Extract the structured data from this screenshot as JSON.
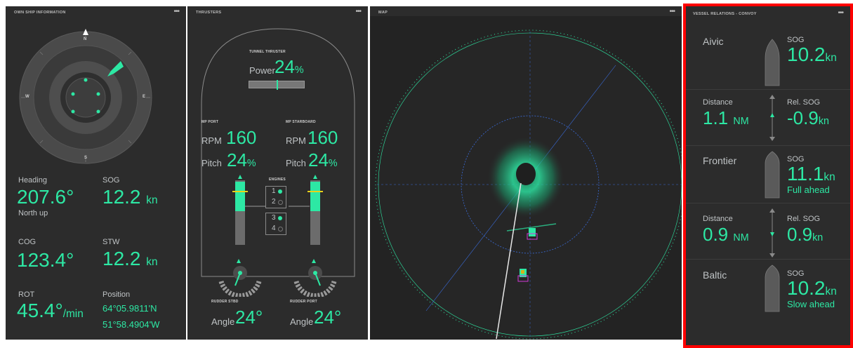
{
  "own_ship": {
    "title": "OWN SHIP INFORMATION",
    "menu": "•••",
    "compass": {
      "n": "N",
      "s": "S",
      "e": "E",
      "w": "W"
    },
    "heading": {
      "label": "Heading",
      "value": "207.6°",
      "sub": "North up"
    },
    "sog": {
      "label": "SOG",
      "value": "12.2",
      "unit": "kn"
    },
    "cog": {
      "label": "COG",
      "value": "123.4°"
    },
    "stw": {
      "label": "STW",
      "value": "12.2",
      "unit": "kn"
    },
    "rot": {
      "label": "ROT",
      "value": "45.4°",
      "unit": "/min"
    },
    "position": {
      "label": "Position",
      "lat": "64°05.9811'N",
      "lon": "51°58.4904'W"
    }
  },
  "thrusters": {
    "title": "THRUSTERS",
    "menu": "•••",
    "tunnel": {
      "title": "TUNNEL THRUSTER",
      "label": "Power",
      "value": "24",
      "unit": "%"
    },
    "mp_port": {
      "title": "MP PORT",
      "rpm_label": "RPM",
      "rpm": "160",
      "pitch_label": "Pitch",
      "pitch": "24",
      "pitch_unit": "%"
    },
    "mp_stbd": {
      "title": "MP STARBOARD",
      "rpm_label": "RPM",
      "rpm": "160",
      "pitch_label": "Pitch",
      "pitch": "24",
      "pitch_unit": "%"
    },
    "engines": {
      "title": "ENGINES",
      "e1": "1",
      "e2": "2",
      "e3": "3",
      "e4": "4"
    },
    "rudder_stbd": {
      "title": "RUDDER STBD",
      "label": "Angle",
      "value": "24°"
    },
    "rudder_port": {
      "title": "RUDDER PORT",
      "label": "Angle",
      "value": "24°"
    }
  },
  "map": {
    "title": "MAP"
  },
  "convoy": {
    "title": "VESSEL RELATIONS - CONVOY",
    "menu": "•••",
    "v1": {
      "name": "Aivic",
      "sog_label": "SOG",
      "sog": "10.2",
      "unit": "kn"
    },
    "d1": {
      "dist_label": "Distance",
      "dist": "1.1",
      "dist_unit": "NM",
      "rel_label": "Rel. SOG",
      "rel": "-0.9",
      "rel_unit": "kn"
    },
    "v2": {
      "name": "Frontier",
      "sog_label": "SOG",
      "sog": "11.1",
      "unit": "kn",
      "status": "Full ahead"
    },
    "d2": {
      "dist_label": "Distance",
      "dist": "0.9",
      "dist_unit": "NM",
      "rel_label": "Rel. SOG",
      "rel": "0.9",
      "rel_unit": "kn"
    },
    "v3": {
      "name": "Baltic",
      "sog_label": "SOG",
      "sog": "10.2",
      "unit": "kn",
      "status": "Slow ahead"
    }
  },
  "colors": {
    "accent": "#2de8a4",
    "panel": "#2c2c2c",
    "highlight": "#ff0000"
  }
}
